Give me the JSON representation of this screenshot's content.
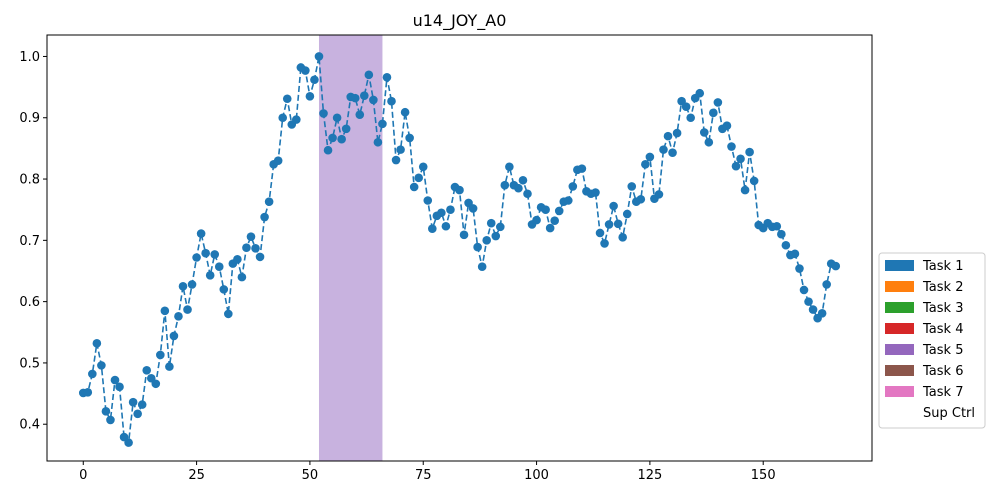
{
  "chart_data": {
    "type": "line",
    "title": "u14_JOY_A0",
    "xlabel": "",
    "ylabel": "",
    "xlim": [
      -8,
      174
    ],
    "ylim": [
      0.34,
      1.035
    ],
    "xticks": [
      0,
      25,
      50,
      75,
      100,
      125,
      150
    ],
    "yticks": [
      0.4,
      0.5,
      0.6,
      0.7,
      0.8,
      0.9,
      1.0
    ],
    "xtick_labels": [
      "0",
      "25",
      "50",
      "75",
      "100",
      "125",
      "150"
    ],
    "ytick_labels": [
      "0.4",
      "0.5",
      "0.6",
      "0.7",
      "0.8",
      "0.9",
      "1.0"
    ],
    "grid": false,
    "legend_position": "right-lower",
    "series": [
      {
        "style": "dashed-line-with-markers",
        "color": "#1f77b4",
        "x": [
          0,
          1,
          2,
          3,
          4,
          5,
          6,
          7,
          8,
          9,
          10,
          11,
          12,
          13,
          14,
          15,
          16,
          17,
          18,
          19,
          20,
          21,
          22,
          23,
          24,
          25,
          26,
          27,
          28,
          29,
          30,
          31,
          32,
          33,
          34,
          35,
          36,
          37,
          38,
          39,
          40,
          41,
          42,
          43,
          44,
          45,
          46,
          47,
          48,
          49,
          50,
          51,
          52,
          53,
          54,
          55,
          56,
          57,
          58,
          59,
          60,
          61,
          62,
          63,
          64,
          65,
          66,
          67,
          68,
          69,
          70,
          71,
          72,
          73,
          74,
          75,
          76,
          77,
          78,
          79,
          80,
          81,
          82,
          83,
          84,
          85,
          86,
          87,
          88,
          89,
          90,
          91,
          92,
          93,
          94,
          95,
          96,
          97,
          98,
          99,
          100,
          101,
          102,
          103,
          104,
          105,
          106,
          107,
          108,
          109,
          110,
          111,
          112,
          113,
          114,
          115,
          116,
          117,
          118,
          119,
          120,
          121,
          122,
          123,
          124,
          125,
          126,
          127,
          128,
          129,
          130,
          131,
          132,
          133,
          134,
          135,
          136,
          137,
          138,
          139,
          140,
          141,
          142,
          143,
          144,
          145,
          146,
          147,
          148,
          149,
          150,
          151,
          152,
          153,
          154,
          155,
          156,
          157,
          158,
          159,
          160,
          161,
          162,
          163,
          164,
          165,
          166
        ],
        "values": [
          0.451,
          0.452,
          0.482,
          0.532,
          0.496,
          0.421,
          0.407,
          0.472,
          0.461,
          0.379,
          0.37,
          0.436,
          0.417,
          0.432,
          0.488,
          0.475,
          0.466,
          0.513,
          0.585,
          0.494,
          0.544,
          0.576,
          0.625,
          0.587,
          0.628,
          0.672,
          0.711,
          0.679,
          0.643,
          0.677,
          0.657,
          0.62,
          0.58,
          0.662,
          0.669,
          0.64,
          0.688,
          0.706,
          0.687,
          0.673,
          0.738,
          0.763,
          0.824,
          0.83,
          0.9,
          0.931,
          0.889,
          0.897,
          0.982,
          0.977,
          0.935,
          0.962,
          1.0,
          0.907,
          0.847,
          0.867,
          0.9,
          0.865,
          0.882,
          0.934,
          0.932,
          0.905,
          0.936,
          0.97,
          0.929,
          0.86,
          0.89,
          0.966,
          0.927,
          0.831,
          0.848,
          0.909,
          0.867,
          0.787,
          0.802,
          0.82,
          0.765,
          0.719,
          0.74,
          0.745,
          0.723,
          0.75,
          0.787,
          0.782,
          0.709,
          0.761,
          0.752,
          0.689,
          0.657,
          0.7,
          0.728,
          0.707,
          0.722,
          0.79,
          0.82,
          0.79,
          0.785,
          0.798,
          0.776,
          0.726,
          0.733,
          0.754,
          0.75,
          0.72,
          0.732,
          0.748,
          0.763,
          0.765,
          0.788,
          0.815,
          0.817,
          0.78,
          0.776,
          0.778,
          0.712,
          0.695,
          0.726,
          0.756,
          0.727,
          0.705,
          0.743,
          0.788,
          0.763,
          0.767,
          0.824,
          0.836,
          0.768,
          0.775,
          0.848,
          0.87,
          0.843,
          0.875,
          0.927,
          0.918,
          0.9,
          0.932,
          0.94,
          0.876,
          0.86,
          0.908,
          0.925,
          0.882,
          0.887,
          0.853,
          0.821,
          0.833,
          0.782,
          0.844,
          0.797,
          0.725,
          0.72,
          0.728,
          0.722,
          0.723,
          0.71,
          0.692,
          0.676,
          0.678,
          0.654,
          0.619,
          0.6,
          0.587,
          0.573,
          0.581,
          0.628,
          0.662,
          0.658
        ]
      }
    ],
    "shaded_regions": [
      {
        "x_start": 52,
        "x_end": 66,
        "color": "#c8b2df"
      }
    ],
    "legend": [
      {
        "label": "Task 1",
        "color": "#1f77b4"
      },
      {
        "label": "Task 2",
        "color": "#ff7f0e"
      },
      {
        "label": "Task 3",
        "color": "#2ca02c"
      },
      {
        "label": "Task 4",
        "color": "#d62728"
      },
      {
        "label": "Task 5",
        "color": "#9467bd"
      },
      {
        "label": "Task 6",
        "color": "#8c564b"
      },
      {
        "label": "Task 7",
        "color": "#e377c2"
      },
      {
        "label": "Sup Ctrl",
        "color": "#ffffff"
      }
    ]
  }
}
